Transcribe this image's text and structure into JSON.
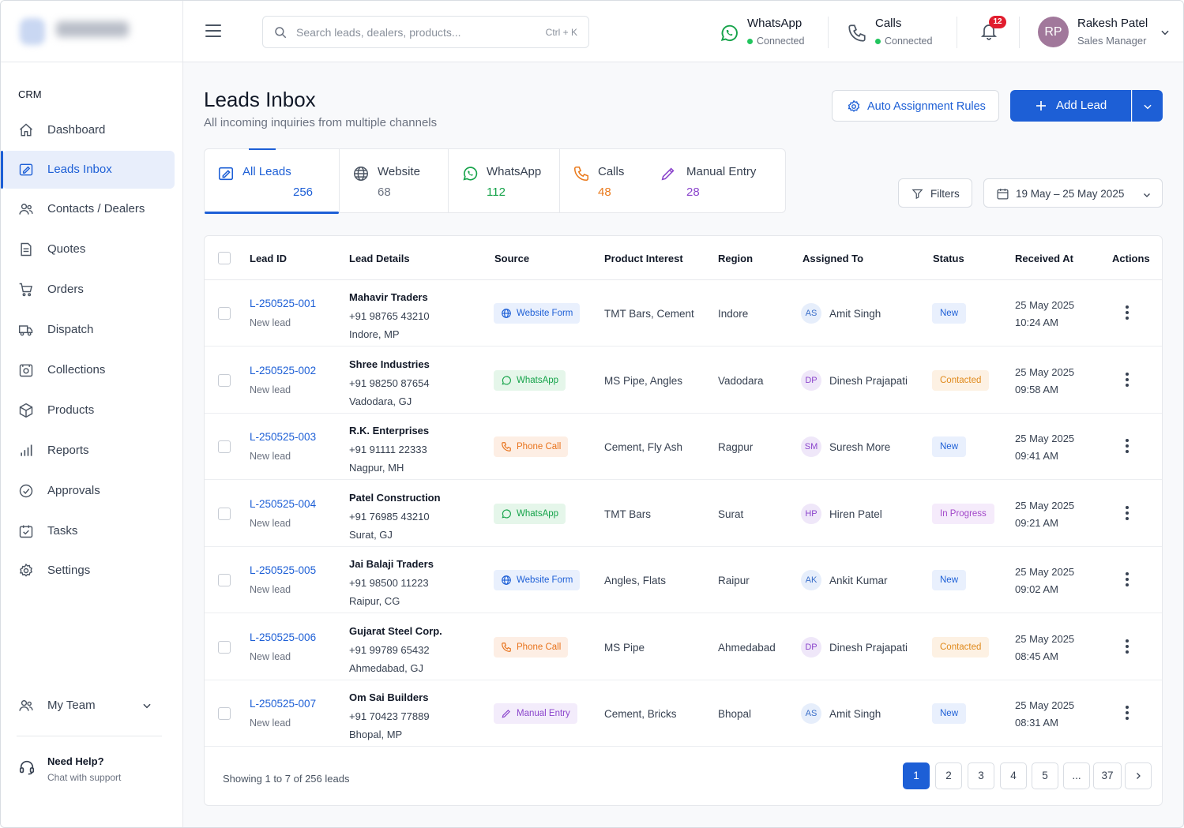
{
  "search": {
    "placeholder": "Search leads, dealers, products...",
    "shortcut": "Ctrl + K"
  },
  "channels": [
    {
      "name": "WhatsApp",
      "status": "Connected",
      "icon": "whatsapp-icon"
    },
    {
      "name": "Calls",
      "status": "Connected",
      "icon": "phone-icon"
    }
  ],
  "notifications": {
    "count": "12"
  },
  "user": {
    "initials": "RP",
    "name": "Rakesh Patel",
    "role": "Sales Manager"
  },
  "sidebar": {
    "section": "CRM",
    "items": [
      {
        "label": "Dashboard",
        "icon": "home-icon"
      },
      {
        "label": "Leads Inbox",
        "icon": "inbox-icon",
        "active": true
      },
      {
        "label": "Contacts / Dealers",
        "icon": "users-icon"
      },
      {
        "label": "Quotes",
        "icon": "document-icon"
      },
      {
        "label": "Orders",
        "icon": "cart-icon"
      },
      {
        "label": "Dispatch",
        "icon": "truck-icon"
      },
      {
        "label": "Collections",
        "icon": "wallet-icon"
      },
      {
        "label": "Products",
        "icon": "box-icon"
      },
      {
        "label": "Reports",
        "icon": "bar-chart-icon"
      },
      {
        "label": "Approvals",
        "icon": "check-circle-icon"
      },
      {
        "label": "Tasks",
        "icon": "calendar-check-icon"
      },
      {
        "label": "Settings",
        "icon": "gear-icon"
      }
    ],
    "team": "My Team",
    "help": {
      "title": "Need Help?",
      "subtitle": "Chat with support"
    }
  },
  "page": {
    "title": "Leads Inbox",
    "subtitle": "All incoming inquiries from multiple channels",
    "rules_button": "Auto Assignment Rules",
    "add_button": "Add Lead"
  },
  "tabs": [
    {
      "label": "All Leads",
      "count": "256",
      "color": "#1d5fd6"
    },
    {
      "label": "Website",
      "count": "68",
      "color": "#6b7280"
    },
    {
      "label": "WhatsApp",
      "count": "112",
      "color": "#16a34a"
    },
    {
      "label": "Calls",
      "count": "48",
      "color": "#ea7a1c"
    },
    {
      "label": "Manual Entry",
      "count": "28",
      "color": "#8b45cc"
    }
  ],
  "filters": {
    "label": "Filters",
    "date_range": "19 May – 25 May 2025"
  },
  "table": {
    "columns": [
      "Lead ID",
      "Lead Details",
      "Source",
      "Product Interest",
      "Region",
      "Assigned To",
      "Status",
      "Received At",
      "Actions"
    ],
    "rows": [
      {
        "id": "L-250525-001",
        "sub": "New lead",
        "company": "Mahavir Traders",
        "phone": "+91 98765 43210",
        "location": "Indore, MP",
        "source": "Website Form",
        "source_type": "web",
        "product": "TMT Bars, Cement",
        "region": "Indore",
        "assignee_initials": "AS",
        "assignee": "Amit Singh",
        "status": "New",
        "status_type": "new",
        "date": "25 May 2025",
        "time": "10:24 AM"
      },
      {
        "id": "L-250525-002",
        "sub": "New lead",
        "company": "Shree Industries",
        "phone": "+91 98250 87654",
        "location": "Vadodara, GJ",
        "source": "WhatsApp",
        "source_type": "wa",
        "product": "MS Pipe, Angles",
        "region": "Vadodara",
        "assignee_initials": "DP",
        "assignee": "Dinesh Prajapati",
        "status": "Contacted",
        "status_type": "contacted",
        "date": "25 May 2025",
        "time": "09:58 AM"
      },
      {
        "id": "L-250525-003",
        "sub": "New lead",
        "company": "R.K. Enterprises",
        "phone": "+91 91111 22333",
        "location": "Nagpur, MH",
        "source": "Phone Call",
        "source_type": "call",
        "product": "Cement, Fly Ash",
        "region": "Ragpur",
        "assignee_initials": "SM",
        "assignee": "Suresh More",
        "status": "New",
        "status_type": "new",
        "date": "25 May 2025",
        "time": "09:41 AM"
      },
      {
        "id": "L-250525-004",
        "sub": "New lead",
        "company": "Patel Construction",
        "phone": "+91 76985 43210",
        "location": "Surat, GJ",
        "source": "WhatsApp",
        "source_type": "wa",
        "product": "TMT Bars",
        "region": "Surat",
        "assignee_initials": "HP",
        "assignee": "Hiren Patel",
        "status": "In Progress",
        "status_type": "progress",
        "date": "25 May 2025",
        "time": "09:21 AM"
      },
      {
        "id": "L-250525-005",
        "sub": "New lead",
        "company": "Jai Balaji Traders",
        "phone": "+91 98500 11223",
        "location": "Raipur, CG",
        "source": "Website Form",
        "source_type": "web",
        "product": "Angles, Flats",
        "region": "Raipur",
        "assignee_initials": "AK",
        "assignee": "Ankit Kumar",
        "status": "New",
        "status_type": "new",
        "date": "25 May 2025",
        "time": "09:02 AM"
      },
      {
        "id": "L-250525-006",
        "sub": "New lead",
        "company": "Gujarat Steel Corp.",
        "phone": "+91 99789 65432",
        "location": "Ahmedabad, GJ",
        "source": "Phone Call",
        "source_type": "call",
        "product": "MS Pipe",
        "region": "Ahmedabad",
        "assignee_initials": "DP",
        "assignee": "Dinesh Prajapati",
        "status": "Contacted",
        "status_type": "contacted",
        "date": "25 May 2025",
        "time": "08:45 AM"
      },
      {
        "id": "L-250525-007",
        "sub": "New lead",
        "company": "Om Sai Builders",
        "phone": "+91 70423 77889",
        "location": "Bhopal, MP",
        "source": "Manual Entry",
        "source_type": "man",
        "product": "Cement, Bricks",
        "region": "Bhopal",
        "assignee_initials": "AS",
        "assignee": "Amit Singh",
        "status": "New",
        "status_type": "new",
        "date": "25 May 2025",
        "time": "08:31 AM"
      }
    ]
  },
  "pagination": {
    "summary": "Showing 1 to 7 of 256 leads",
    "pages": [
      "1",
      "2",
      "3",
      "4",
      "5",
      "...",
      "37"
    ],
    "current": "1"
  }
}
